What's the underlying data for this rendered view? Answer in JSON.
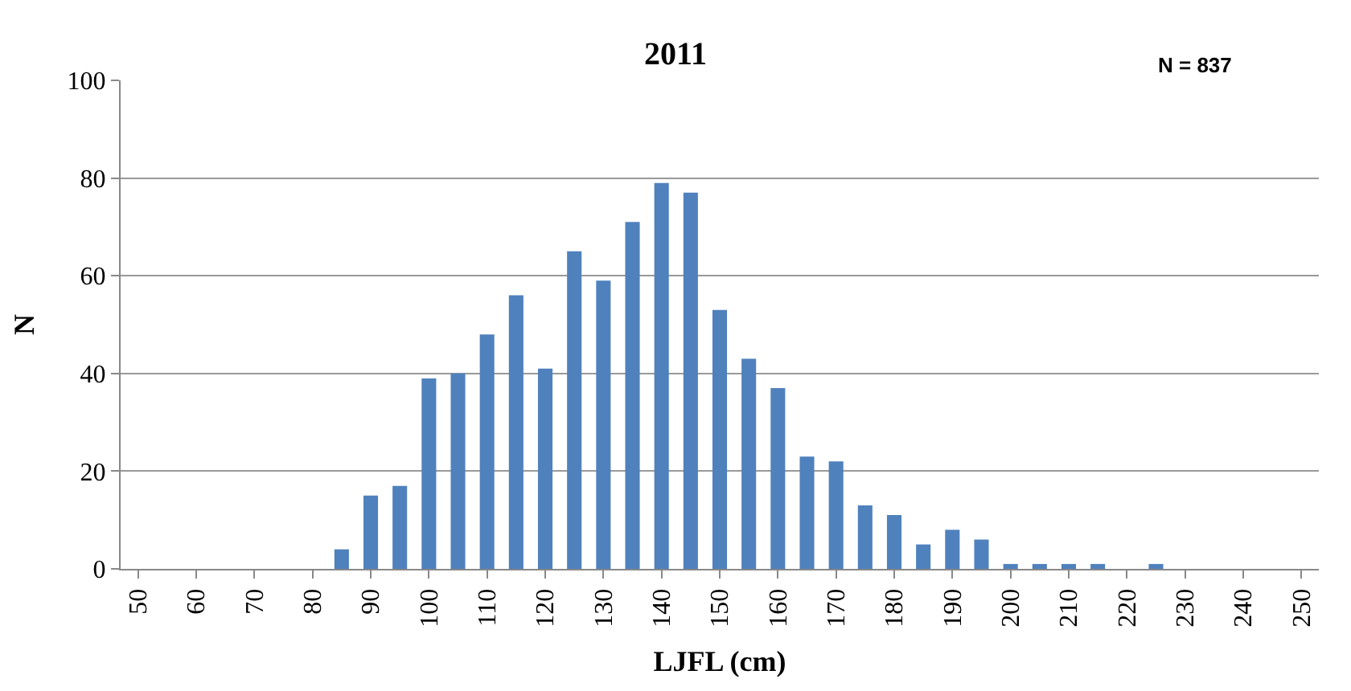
{
  "chart_data": {
    "type": "bar",
    "title": "2011",
    "xlabel": "LJFL (cm)",
    "ylabel": "N",
    "categories": [
      "50",
      null,
      "60",
      null,
      "70",
      null,
      "80",
      null,
      "90",
      null,
      "100",
      null,
      "110",
      null,
      "120",
      null,
      "130",
      null,
      "140",
      null,
      "150",
      null,
      "160",
      null,
      "170",
      null,
      "180",
      null,
      "190",
      null,
      "200",
      null,
      "210",
      null,
      "220",
      null,
      "230",
      null,
      "240",
      null,
      "250"
    ],
    "values": [
      0,
      0,
      0,
      0,
      0,
      0,
      0,
      4,
      15,
      17,
      39,
      40,
      48,
      56,
      41,
      65,
      59,
      71,
      79,
      77,
      53,
      43,
      37,
      23,
      22,
      13,
      11,
      5,
      8,
      6,
      1,
      1,
      1,
      1,
      0,
      1,
      0,
      0,
      0,
      0,
      0
    ],
    "color": "#4f81bd",
    "ylim": [
      0,
      100
    ],
    "yticks": [
      0,
      20,
      40,
      60,
      80,
      100
    ],
    "grid": "y",
    "annotations": [
      "N = 837"
    ]
  }
}
